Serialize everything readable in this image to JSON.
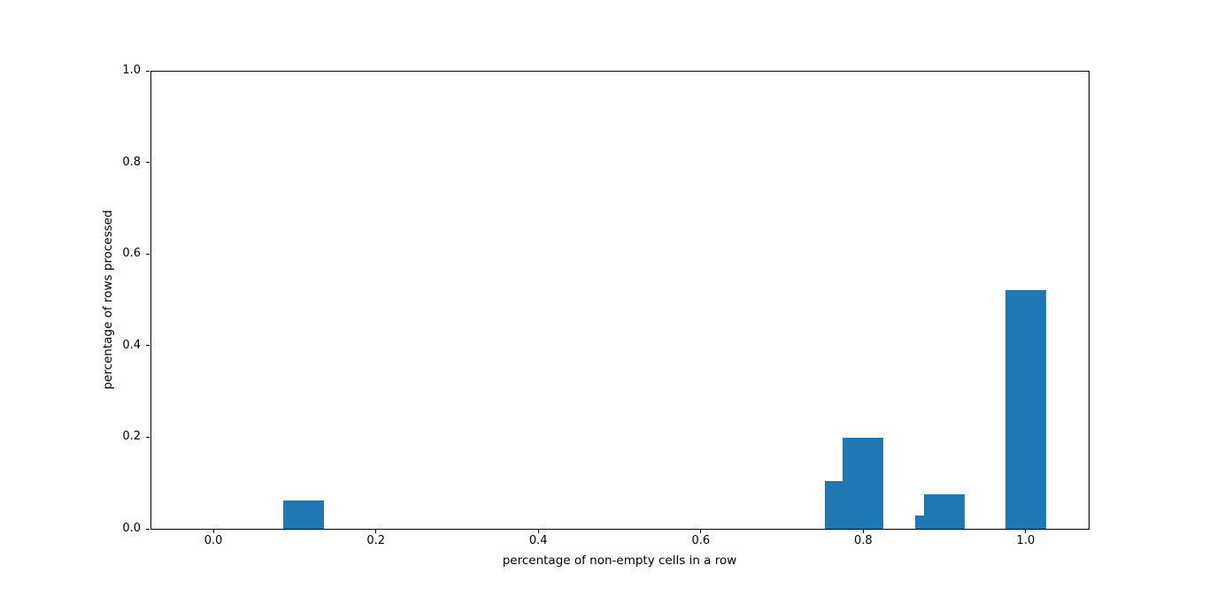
{
  "chart_data": {
    "type": "bar",
    "title": "",
    "xlabel": "percentage of non-empty cells in a row",
    "ylabel": "percentage of rows processed",
    "bar_color": "#1f77b4",
    "bar_width": 0.05,
    "xlim": [
      -0.0775,
      1.0775
    ],
    "ylim": [
      0,
      1.0
    ],
    "grid": false,
    "legend": null,
    "x_ticks": [
      0.0,
      0.2,
      0.4,
      0.6,
      0.8,
      1.0
    ],
    "x_tick_labels": [
      "0.0",
      "0.2",
      "0.4",
      "0.6",
      "0.8",
      "1.0"
    ],
    "y_ticks": [
      0.0,
      0.2,
      0.4,
      0.6,
      0.8,
      1.0
    ],
    "y_tick_labels": [
      "0.0",
      "0.2",
      "0.4",
      "0.6",
      "0.8",
      "1.0"
    ],
    "bars": [
      {
        "x": 0.111,
        "height": 0.061
      },
      {
        "x": 0.778,
        "height": 0.105
      },
      {
        "x": 0.8,
        "height": 0.199
      },
      {
        "x": 0.889,
        "height": 0.029
      },
      {
        "x": 0.9,
        "height": 0.075
      },
      {
        "x": 1.0,
        "height": 0.522
      }
    ]
  }
}
